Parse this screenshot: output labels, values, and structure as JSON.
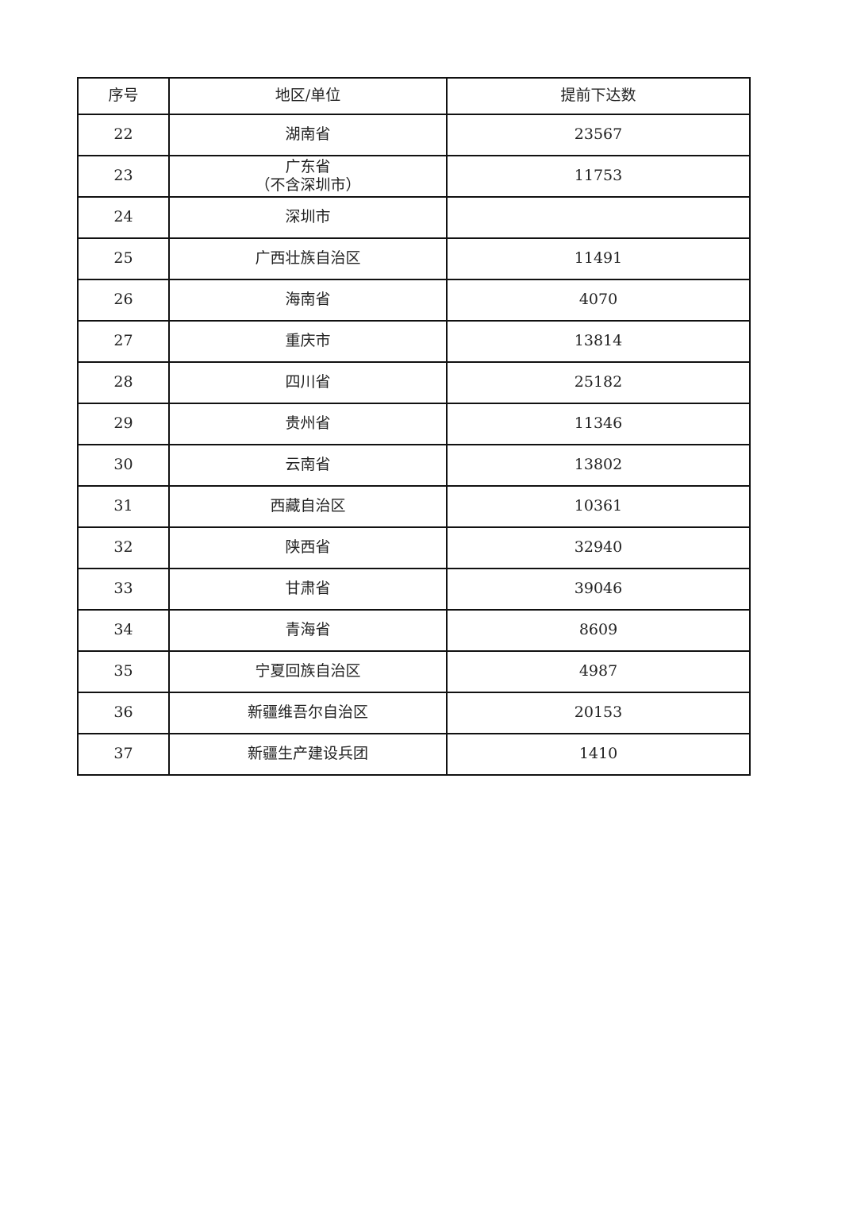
{
  "table": {
    "headers": [
      "序号",
      "地区/单位",
      "提前下达数"
    ],
    "rows": [
      {
        "no": "22",
        "region": "湖南省",
        "amount": "23567"
      },
      {
        "no": "23",
        "region": "广东省\n（不含深圳市）",
        "amount": "11753"
      },
      {
        "no": "24",
        "region": "深圳市",
        "amount": ""
      },
      {
        "no": "25",
        "region": "广西壮族自治区",
        "amount": "11491"
      },
      {
        "no": "26",
        "region": "海南省",
        "amount": "4070"
      },
      {
        "no": "27",
        "region": "重庆市",
        "amount": "13814"
      },
      {
        "no": "28",
        "region": "四川省",
        "amount": "25182"
      },
      {
        "no": "29",
        "region": "贵州省",
        "amount": "11346"
      },
      {
        "no": "30",
        "region": "云南省",
        "amount": "13802"
      },
      {
        "no": "31",
        "region": "西藏自治区",
        "amount": "10361"
      },
      {
        "no": "32",
        "region": "陕西省",
        "amount": "32940"
      },
      {
        "no": "33",
        "region": "甘肃省",
        "amount": "39046"
      },
      {
        "no": "34",
        "region": "青海省",
        "amount": "8609"
      },
      {
        "no": "35",
        "region": "宁夏回族自治区",
        "amount": "4987"
      },
      {
        "no": "36",
        "region": "新疆维吾尔自治区",
        "amount": "20153"
      },
      {
        "no": "37",
        "region": "新疆生产建设兵团",
        "amount": "1410"
      }
    ]
  }
}
